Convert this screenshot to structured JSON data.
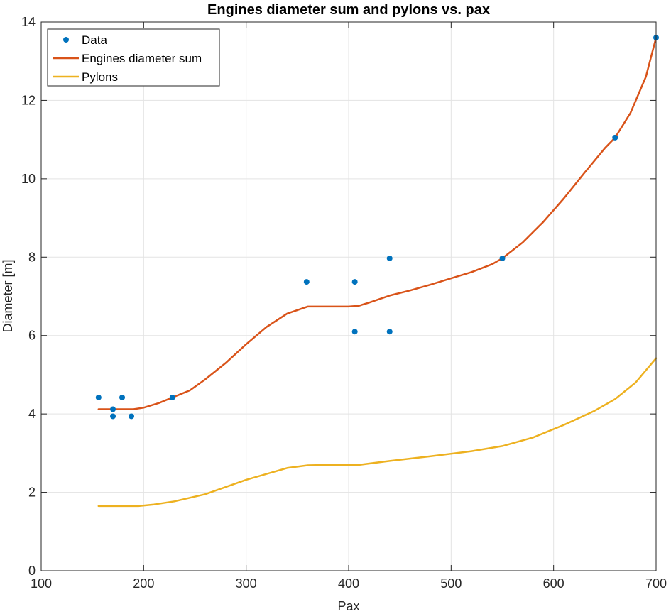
{
  "chart_data": {
    "type": "line",
    "title": "Engines diameter sum and pylons vs. pax",
    "xlabel": "Pax",
    "ylabel": "Diameter [m]",
    "xlim": [
      100,
      700
    ],
    "ylim": [
      0,
      14
    ],
    "xticks": [
      100,
      200,
      300,
      400,
      500,
      600,
      700
    ],
    "yticks": [
      0,
      2,
      4,
      6,
      8,
      10,
      12,
      14
    ],
    "grid": true,
    "legend_position": "top-left",
    "series": [
      {
        "name": "Data",
        "style": "markers",
        "color": "#0072BD",
        "points": [
          [
            156,
            4.42
          ],
          [
            170,
            4.12
          ],
          [
            170,
            3.94
          ],
          [
            179,
            4.42
          ],
          [
            188,
            3.94
          ],
          [
            228,
            4.42
          ],
          [
            359,
            7.37
          ],
          [
            406,
            7.37
          ],
          [
            406,
            6.1
          ],
          [
            440,
            7.97
          ],
          [
            440,
            6.1
          ],
          [
            550,
            7.97
          ],
          [
            660,
            11.05
          ],
          [
            700,
            13.6
          ]
        ]
      },
      {
        "name": "Engines diameter sum",
        "style": "line",
        "color": "#D95319",
        "points": [
          [
            156,
            4.12
          ],
          [
            170,
            4.12
          ],
          [
            180,
            4.12
          ],
          [
            190,
            4.12
          ],
          [
            200,
            4.16
          ],
          [
            215,
            4.28
          ],
          [
            228,
            4.42
          ],
          [
            245,
            4.6
          ],
          [
            260,
            4.88
          ],
          [
            280,
            5.3
          ],
          [
            300,
            5.78
          ],
          [
            320,
            6.22
          ],
          [
            340,
            6.56
          ],
          [
            360,
            6.74
          ],
          [
            380,
            6.74
          ],
          [
            400,
            6.74
          ],
          [
            410,
            6.76
          ],
          [
            420,
            6.84
          ],
          [
            440,
            7.02
          ],
          [
            460,
            7.15
          ],
          [
            480,
            7.3
          ],
          [
            500,
            7.46
          ],
          [
            520,
            7.62
          ],
          [
            540,
            7.82
          ],
          [
            550,
            7.97
          ],
          [
            570,
            8.38
          ],
          [
            590,
            8.9
          ],
          [
            610,
            9.5
          ],
          [
            630,
            10.15
          ],
          [
            650,
            10.78
          ],
          [
            660,
            11.05
          ],
          [
            675,
            11.68
          ],
          [
            690,
            12.6
          ],
          [
            700,
            13.6
          ]
        ]
      },
      {
        "name": "Pylons",
        "style": "line",
        "color": "#EDB120",
        "points": [
          [
            156,
            1.65
          ],
          [
            180,
            1.65
          ],
          [
            195,
            1.65
          ],
          [
            210,
            1.69
          ],
          [
            230,
            1.77
          ],
          [
            260,
            1.95
          ],
          [
            300,
            2.32
          ],
          [
            340,
            2.62
          ],
          [
            360,
            2.69
          ],
          [
            380,
            2.7
          ],
          [
            410,
            2.7
          ],
          [
            440,
            2.8
          ],
          [
            480,
            2.92
          ],
          [
            520,
            3.05
          ],
          [
            550,
            3.18
          ],
          [
            580,
            3.4
          ],
          [
            610,
            3.72
          ],
          [
            640,
            4.08
          ],
          [
            660,
            4.38
          ],
          [
            680,
            4.8
          ],
          [
            700,
            5.42
          ]
        ]
      }
    ]
  }
}
